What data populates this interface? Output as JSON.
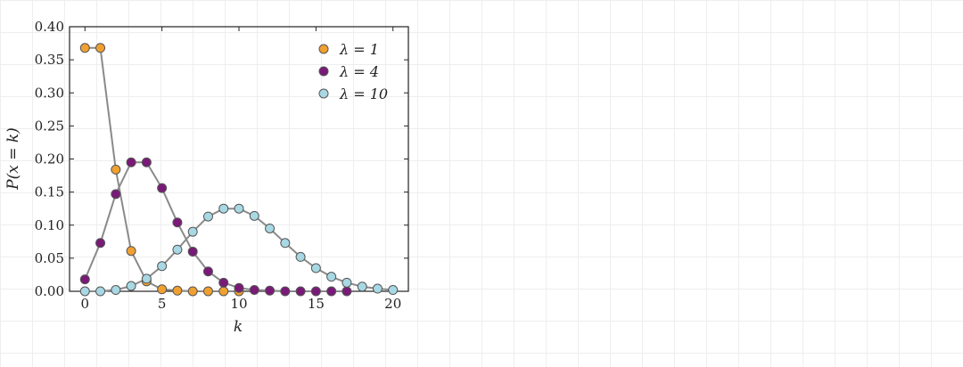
{
  "chart_data": {
    "type": "line",
    "xlabel": "k",
    "ylabel": "P(x = k)",
    "xlim": [
      -1,
      21
    ],
    "ylim": [
      0,
      0.4
    ],
    "xticks": [
      "0",
      "5",
      "10",
      "15",
      "20"
    ],
    "yticks": [
      "0.00",
      "0.05",
      "0.10",
      "0.15",
      "0.20",
      "0.25",
      "0.30",
      "0.35",
      "0.40"
    ],
    "grid": false,
    "legend_position": "top-right",
    "line_color": "#8a8a8a",
    "series": [
      {
        "name": "λ = 1",
        "color": "#f0a030",
        "x": [
          0,
          1,
          2,
          3,
          4,
          5,
          6,
          7,
          8,
          9,
          10
        ],
        "values": [
          0.368,
          0.368,
          0.184,
          0.061,
          0.015,
          0.003,
          0.001,
          0.0,
          0.0,
          0.0,
          0.0
        ]
      },
      {
        "name": "λ = 4",
        "color": "#7a1a78",
        "x": [
          0,
          1,
          2,
          3,
          4,
          5,
          6,
          7,
          8,
          9,
          10,
          11,
          12,
          13,
          14,
          15,
          16,
          17
        ],
        "values": [
          0.018,
          0.073,
          0.147,
          0.195,
          0.195,
          0.156,
          0.104,
          0.06,
          0.03,
          0.013,
          0.005,
          0.002,
          0.001,
          0.0,
          0.0,
          0.0,
          0.0,
          0.0
        ]
      },
      {
        "name": "λ = 10",
        "color": "#a8d8e4",
        "x": [
          0,
          1,
          2,
          3,
          4,
          5,
          6,
          7,
          8,
          9,
          10,
          11,
          12,
          13,
          14,
          15,
          16,
          17,
          18,
          19,
          20
        ],
        "values": [
          0.0,
          0.0,
          0.002,
          0.008,
          0.019,
          0.038,
          0.063,
          0.09,
          0.113,
          0.125,
          0.125,
          0.114,
          0.095,
          0.073,
          0.052,
          0.035,
          0.022,
          0.013,
          0.007,
          0.004,
          0.002
        ]
      }
    ]
  }
}
